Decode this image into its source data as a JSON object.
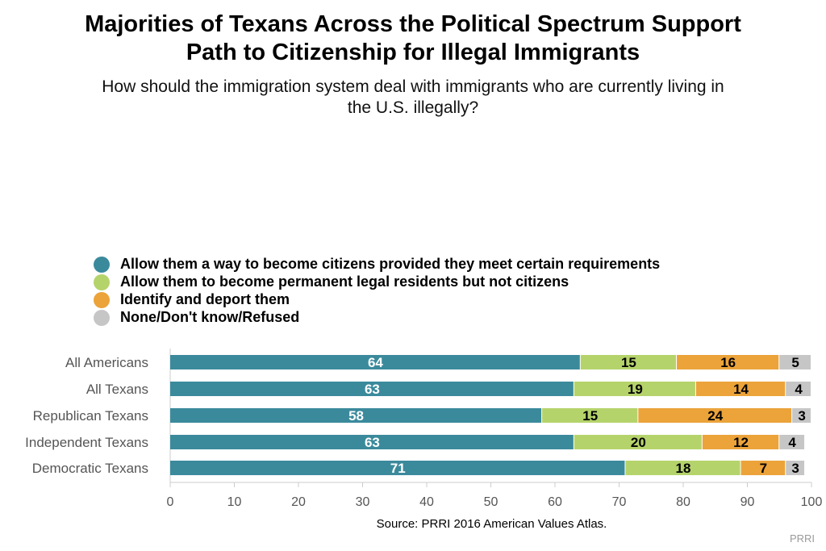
{
  "chart_data": {
    "type": "bar",
    "orientation": "horizontal",
    "stacked": true,
    "title_lines": [
      "Majorities of Texans Across the Political Spectrum Support",
      "Path to Citizenship for Illegal Immigrants"
    ],
    "subtitle_lines": [
      "How should the immigration system deal with immigrants who are currently living in",
      "the U.S. illegally?"
    ],
    "categories": [
      "All Americans",
      "All Texans",
      "Republican Texans",
      "Independent Texans",
      "Democratic Texans"
    ],
    "series": [
      {
        "name": "Allow them a way to become citizens provided they meet certain requirements",
        "color": "#3b8a9c",
        "label_color": "#ffffff",
        "values": [
          64,
          63,
          58,
          63,
          71
        ]
      },
      {
        "name": "Allow them to become permanent legal residents but not citizens",
        "color": "#b5d36b",
        "label_color": "#000000",
        "values": [
          15,
          19,
          15,
          20,
          18
        ]
      },
      {
        "name": "Identify and deport them",
        "color": "#eba33a",
        "label_color": "#000000",
        "values": [
          16,
          14,
          24,
          12,
          7
        ]
      },
      {
        "name": "None/Don't know/Refused",
        "color": "#c6c6c6",
        "label_color": "#000000",
        "values": [
          5,
          4,
          3,
          4,
          3
        ]
      }
    ],
    "xlim": [
      0,
      100
    ],
    "xticks": [
      0,
      10,
      20,
      30,
      40,
      50,
      60,
      70,
      80,
      90,
      100
    ],
    "legend_position": "top-left",
    "grid": false
  },
  "source": "Source: PRRI 2016 American Values Atlas.",
  "watermark": "PRRI"
}
